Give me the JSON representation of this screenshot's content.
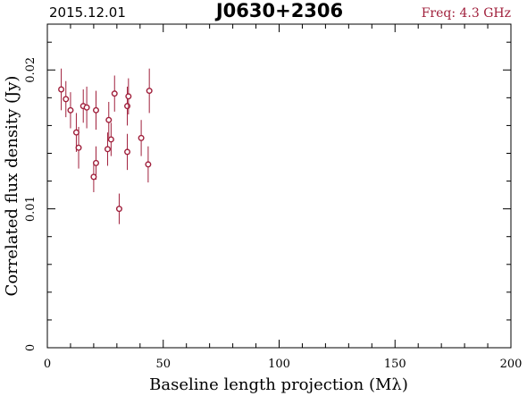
{
  "header": {
    "date": "2015.12.01",
    "source": "J0630+2306",
    "freq": "Freq: 4.3 GHz"
  },
  "colors": {
    "accent": "#a0203c",
    "axis": "#000000"
  },
  "chart_data": {
    "type": "scatter",
    "title": "J0630+2306",
    "xlabel": "Baseline length projection (Mλ)",
    "ylabel": "Correlated flux density (Jy)",
    "xlim": [
      0,
      200
    ],
    "ylim": [
      0,
      0.0233
    ],
    "x_ticks": [
      0,
      50,
      100,
      150,
      200
    ],
    "x_tick_labels": [
      "0",
      "50",
      "100",
      "150",
      "200"
    ],
    "y_ticks": [
      0,
      0.01,
      0.02
    ],
    "y_tick_labels": [
      "0",
      "0.01",
      "0.02"
    ],
    "grid": false,
    "legend": "none",
    "series": [
      {
        "points": [
          {
            "x": 6.0,
            "y": 0.0186,
            "err": 0.0015
          },
          {
            "x": 8.0,
            "y": 0.0179,
            "err": 0.0013
          },
          {
            "x": 10.0,
            "y": 0.0171,
            "err": 0.0013
          },
          {
            "x": 12.5,
            "y": 0.0155,
            "err": 0.0014
          },
          {
            "x": 13.5,
            "y": 0.0144,
            "err": 0.0015
          },
          {
            "x": 15.5,
            "y": 0.0174,
            "err": 0.0012
          },
          {
            "x": 17.0,
            "y": 0.0173,
            "err": 0.0015
          },
          {
            "x": 20.0,
            "y": 0.0123,
            "err": 0.0011
          },
          {
            "x": 21.0,
            "y": 0.0133,
            "err": 0.0012
          },
          {
            "x": 21.0,
            "y": 0.0171,
            "err": 0.0014
          },
          {
            "x": 26.0,
            "y": 0.0143,
            "err": 0.0012
          },
          {
            "x": 26.5,
            "y": 0.0164,
            "err": 0.0013
          },
          {
            "x": 27.5,
            "y": 0.015,
            "err": 0.0012
          },
          {
            "x": 29.0,
            "y": 0.0183,
            "err": 0.0013
          },
          {
            "x": 31.0,
            "y": 0.01,
            "err": 0.0011
          },
          {
            "x": 34.5,
            "y": 0.0141,
            "err": 0.0013
          },
          {
            "x": 34.5,
            "y": 0.0174,
            "err": 0.0014
          },
          {
            "x": 35.0,
            "y": 0.0181,
            "err": 0.0013
          },
          {
            "x": 40.5,
            "y": 0.0151,
            "err": 0.0013
          },
          {
            "x": 43.5,
            "y": 0.0132,
            "err": 0.0013
          },
          {
            "x": 44.0,
            "y": 0.0185,
            "err": 0.0016
          }
        ]
      }
    ]
  }
}
